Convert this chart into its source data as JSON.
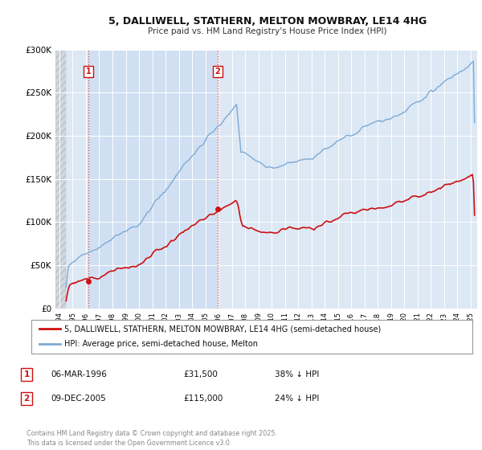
{
  "title": "5, DALLIWELL, STATHERN, MELTON MOWBRAY, LE14 4HG",
  "subtitle": "Price paid vs. HM Land Registry's House Price Index (HPI)",
  "bg_color": "#ffffff",
  "plot_bg_color": "#dde8f5",
  "hatch_bg_color": "#cccccc",
  "grid_color": "#ffffff",
  "hpi_color": "#7eaad4",
  "price_color": "#cc1111",
  "marker_color": "#cc1111",
  "vline_color": "#dd3333",
  "shade_color": "#c8d8ee",
  "sale1_year": 1996.18,
  "sale1_price": 31500,
  "sale1_label": "1",
  "sale1_date": "06-MAR-1996",
  "sale1_hpi_diff": "38% ↓ HPI",
  "sale2_year": 2005.94,
  "sale2_price": 115000,
  "sale2_label": "2",
  "sale2_date": "09-DEC-2005",
  "sale2_hpi_diff": "24% ↓ HPI",
  "legend_label1": "5, DALLIWELL, STATHERN, MELTON MOWBRAY, LE14 4HG (semi-detached house)",
  "legend_label2": "HPI: Average price, semi-detached house, Melton",
  "footer": "Contains HM Land Registry data © Crown copyright and database right 2025.\nThis data is licensed under the Open Government Licence v3.0.",
  "ylim": [
    0,
    300000
  ],
  "xlim_start": 1993.7,
  "xlim_end": 2025.5,
  "data_start": 1994.5,
  "yticks": [
    0,
    50000,
    100000,
    150000,
    200000,
    250000,
    300000
  ],
  "ytick_labels": [
    "£0",
    "£50K",
    "£100K",
    "£150K",
    "£200K",
    "£250K",
    "£300K"
  ]
}
